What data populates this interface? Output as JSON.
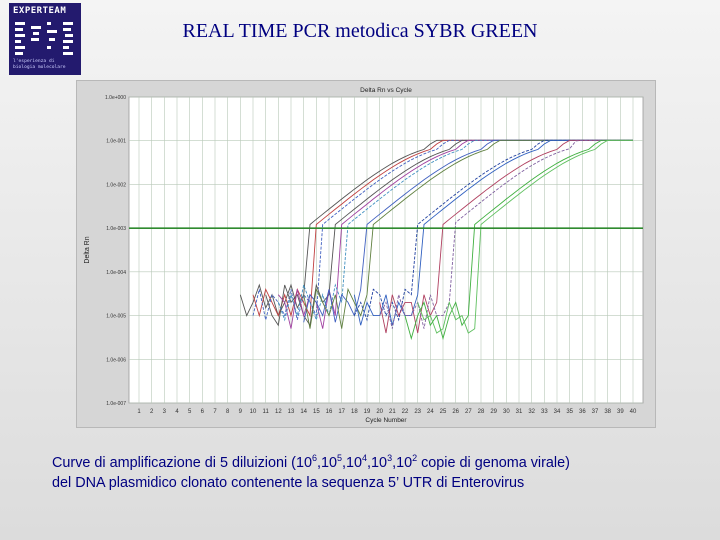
{
  "logo": {
    "name": "EXPERTEAM",
    "caption_line1": "l'esperienza di",
    "caption_line2": "biologia molecolare"
  },
  "title": "REAL TIME PCR  metodica SYBR GREEN",
  "chart_data": {
    "type": "line",
    "title": "Delta Rn vs Cycle",
    "xlabel": "Cycle Number",
    "ylabel": "Delta Rn",
    "y_scale": "log",
    "xlim": [
      1,
      40
    ],
    "ylim": [
      1e-07,
      1
    ],
    "x_ticks": [
      "1",
      "2",
      "3",
      "4",
      "5",
      "6",
      "7",
      "8",
      "9",
      "10",
      "11",
      "12",
      "13",
      "14",
      "15",
      "16",
      "17",
      "18",
      "19",
      "20",
      "21",
      "22",
      "23",
      "24",
      "25",
      "26",
      "27",
      "28",
      "29",
      "30",
      "31",
      "32",
      "33",
      "34",
      "35",
      "36",
      "37",
      "38",
      "39",
      "40"
    ],
    "y_ticks": [
      "1.0e+000",
      "1.0e-001",
      "1.0e-002",
      "1.0e-003",
      "1.0e-004",
      "1.0e-005",
      "1.0e-006",
      "1.0e-007"
    ],
    "threshold": 0.001,
    "grid": true,
    "plateau": 0.1,
    "series": [
      {
        "color": "#555555",
        "ct": 18.5,
        "baseline": [
          2e-05,
          5e-05,
          1.5e-05,
          3e-05,
          1e-05
        ]
      },
      {
        "color": "#c04040",
        "ct": 19.0,
        "baseline": [
          3e-05,
          1e-05,
          4e-05,
          2e-05,
          1e-05
        ]
      },
      {
        "color": "#4060c0",
        "ct": 19.5,
        "baseline": [
          1e-05,
          4e-05,
          8e-06,
          3e-05,
          2e-05
        ]
      },
      {
        "color": "#555555",
        "ct": 20.5,
        "baseline": [
          5e-05,
          2e-05,
          3e-05,
          1e-05,
          6e-06
        ]
      },
      {
        "color": "#a040a0",
        "ct": 21.0,
        "baseline": [
          2e-05,
          5e-06,
          4e-05,
          1e-05,
          3e-05
        ]
      },
      {
        "color": "#4090c0",
        "ct": 21.5,
        "baseline": [
          8e-06,
          3e-05,
          1e-05,
          5e-05,
          2e-05
        ]
      },
      {
        "color": "#4060c0",
        "ct": 23.0,
        "baseline": [
          2e-05,
          1e-05,
          4e-05,
          7e-06,
          3e-05
        ]
      },
      {
        "color": "#608040",
        "ct": 23.5,
        "baseline": [
          4e-05,
          2e-05,
          1e-05,
          3e-05,
          5e-06
        ]
      },
      {
        "color": "#2040a0",
        "ct": 27.0,
        "baseline": [
          3e-05,
          1e-05,
          2e-05,
          8e-06,
          4e-05
        ]
      },
      {
        "color": "#3060c0",
        "ct": 27.5,
        "baseline": [
          1e-05,
          3e-05,
          6e-06,
          2e-05,
          1e-05
        ]
      },
      {
        "color": "#b04060",
        "ct": 29.0,
        "baseline": [
          2e-05,
          4e-06,
          3e-05,
          1e-05,
          2e-05
        ]
      },
      {
        "color": "#8060a0",
        "ct": 29.8,
        "baseline": [
          1e-05,
          2e-05,
          5e-06,
          3e-05,
          1e-05
        ]
      },
      {
        "color": "#40b040",
        "ct": 31.5,
        "baseline": [
          3e-06,
          1e-05,
          2e-05,
          6e-06,
          1e-05
        ]
      },
      {
        "color": "#60c060",
        "ct": 32.0,
        "baseline": [
          5e-06,
          2e-05,
          8e-06,
          1e-05,
          4e-06
        ]
      }
    ]
  },
  "caption": {
    "line1_a": "Curve di amplificazione di 5 diluizioni (10",
    "exp1": "6",
    "sep1": ",10",
    "exp2": "5",
    "sep2": ",10",
    "exp3": "4",
    "sep3": ",10",
    "exp4": "3",
    "sep4": ",10",
    "exp5": "2",
    "line1_b": " copie di genoma virale)",
    "line2": "del DNA plasmidico clonato contenente la sequenza 5’ UTR di Enterovirus"
  }
}
